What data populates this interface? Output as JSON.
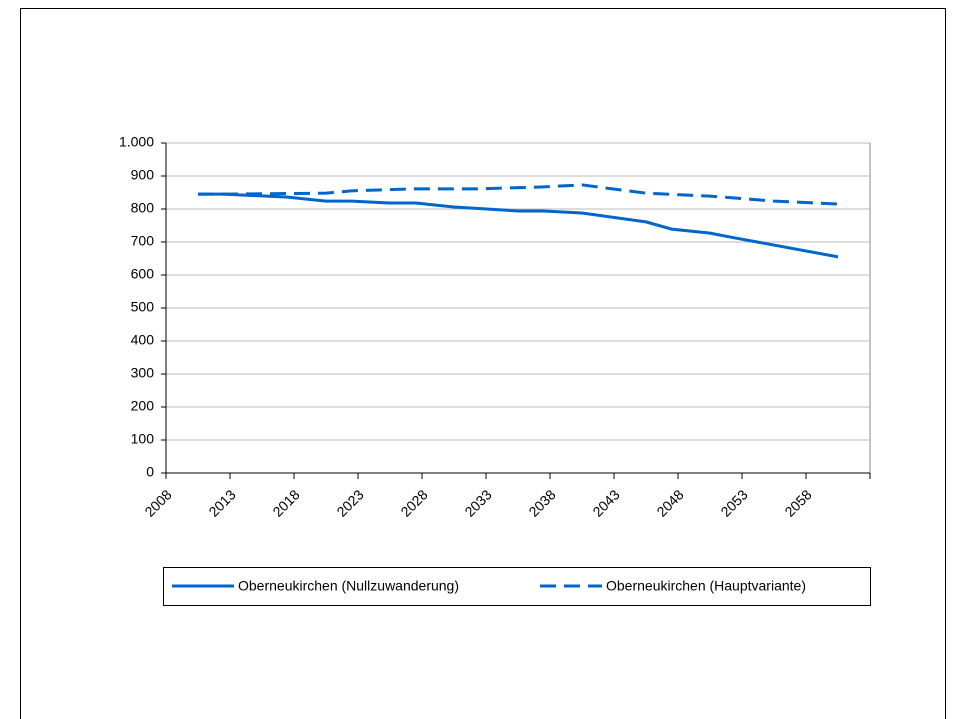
{
  "chart_data": {
    "type": "line",
    "ylim": [
      0,
      1000
    ],
    "yticks": [
      0,
      100,
      200,
      300,
      400,
      500,
      600,
      700,
      800,
      900,
      {
        "value": 1000,
        "label": "1.000"
      }
    ],
    "xlim": [
      2007.5,
      2062.5
    ],
    "xticks": [
      {
        "value": 2007.5,
        "label": "2008"
      },
      {
        "value": 2012.5,
        "label": "2013"
      },
      {
        "value": 2017.5,
        "label": "2018"
      },
      {
        "value": 2022.5,
        "label": "2023"
      },
      {
        "value": 2027.5,
        "label": "2028"
      },
      {
        "value": 2032.5,
        "label": "2033"
      },
      {
        "value": 2037.5,
        "label": "2038"
      },
      {
        "value": 2042.5,
        "label": "2043"
      },
      {
        "value": 2047.5,
        "label": "2048"
      },
      {
        "value": 2052.5,
        "label": "2053"
      },
      {
        "value": 2057.5,
        "label": "2058"
      },
      2062.5
    ],
    "grid": true,
    "series": [
      {
        "name": "Oberneukirchen (Nullzuwanderung)",
        "color": "#0066cc",
        "dash": false,
        "x": [
          2010,
          2012,
          2017,
          2020,
          2022,
          2025,
          2027,
          2030,
          2035,
          2037,
          2040,
          2045,
          2047,
          2050,
          2052,
          2060
        ],
        "values": [
          845,
          845,
          836,
          824,
          824,
          818,
          818,
          806,
          794,
          794,
          788,
          761,
          739,
          727,
          712,
          655
        ]
      },
      {
        "name": "Oberneukirchen (Hauptvariante)",
        "color": "#0066cc",
        "dash": true,
        "x": [
          2010,
          2012,
          2020,
          2022,
          2027,
          2032,
          2037,
          2040,
          2045,
          2050,
          2055,
          2060
        ],
        "values": [
          845,
          845,
          848,
          855,
          861,
          861,
          867,
          873,
          848,
          839,
          824,
          815
        ]
      }
    ]
  }
}
